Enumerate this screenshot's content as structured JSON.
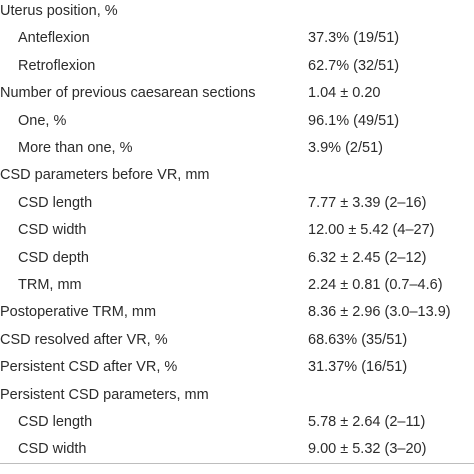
{
  "rows": [
    {
      "label": "Uterus position, %",
      "value": "",
      "indent": false
    },
    {
      "label": "Anteflexion",
      "value": "37.3% (19/51)",
      "indent": true
    },
    {
      "label": "Retroflexion",
      "value": "62.7% (32/51)",
      "indent": true
    },
    {
      "label": "Number of previous caesarean sections",
      "value": "1.04 ± 0.20",
      "indent": false
    },
    {
      "label": "One, %",
      "value": "96.1% (49/51)",
      "indent": true
    },
    {
      "label": "More than one, %",
      "value": "3.9% (2/51)",
      "indent": true
    },
    {
      "label": "CSD parameters before VR, mm",
      "value": "",
      "indent": false
    },
    {
      "label": "CSD length",
      "value": "7.77 ± 3.39 (2–16)",
      "indent": true
    },
    {
      "label": "CSD width",
      "value": "12.00 ± 5.42 (4–27)",
      "indent": true
    },
    {
      "label": "CSD depth",
      "value": "6.32 ± 2.45 (2–12)",
      "indent": true
    },
    {
      "label": "TRM, mm",
      "value": "2.24 ± 0.81 (0.7–4.6)",
      "indent": true
    },
    {
      "label": "Postoperative TRM, mm",
      "value": "8.36 ± 2.96 (3.0–13.9)",
      "indent": false
    },
    {
      "label": "CSD resolved after VR, %",
      "value": "68.63% (35/51)",
      "indent": false
    },
    {
      "label": "Persistent CSD after VR, %",
      "value": "31.37% (16/51)",
      "indent": false
    },
    {
      "label": "Persistent CSD parameters, mm",
      "value": "",
      "indent": false
    },
    {
      "label": "CSD length",
      "value": "5.78 ± 2.64 (2–11)",
      "indent": true
    },
    {
      "label": "CSD width",
      "value": "9.00 ± 5.32 (3–20)",
      "indent": true
    }
  ]
}
